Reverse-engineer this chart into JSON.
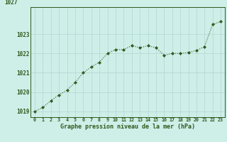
{
  "x": [
    0,
    1,
    2,
    3,
    4,
    5,
    6,
    7,
    8,
    9,
    10,
    11,
    12,
    13,
    14,
    15,
    16,
    17,
    18,
    19,
    20,
    21,
    22,
    23
  ],
  "y": [
    1019.0,
    1019.2,
    1019.55,
    1019.85,
    1020.1,
    1020.5,
    1021.0,
    1021.3,
    1021.55,
    1022.0,
    1022.2,
    1022.2,
    1022.4,
    1022.3,
    1022.4,
    1022.3,
    1021.9,
    1022.0,
    1022.0,
    1022.05,
    1022.15,
    1022.35,
    1023.5,
    1023.65
  ],
  "ylim": [
    1018.7,
    1024.4
  ],
  "yticks": [
    1019,
    1020,
    1021,
    1022,
    1023
  ],
  "xticks": [
    0,
    1,
    2,
    3,
    4,
    5,
    6,
    7,
    8,
    9,
    10,
    11,
    12,
    13,
    14,
    15,
    16,
    17,
    18,
    19,
    20,
    21,
    22,
    23
  ],
  "xlabel": "Graphe pression niveau de la mer (hPa)",
  "line_color": "#2d5a1b",
  "marker_color": "#2d5a1b",
  "bg_color": "#ceeee8",
  "grid_color": "#b0d8d2",
  "axis_color": "#2d5a1b",
  "tick_label_color": "#2d5a1b",
  "fig_bg": "#ceeee8"
}
